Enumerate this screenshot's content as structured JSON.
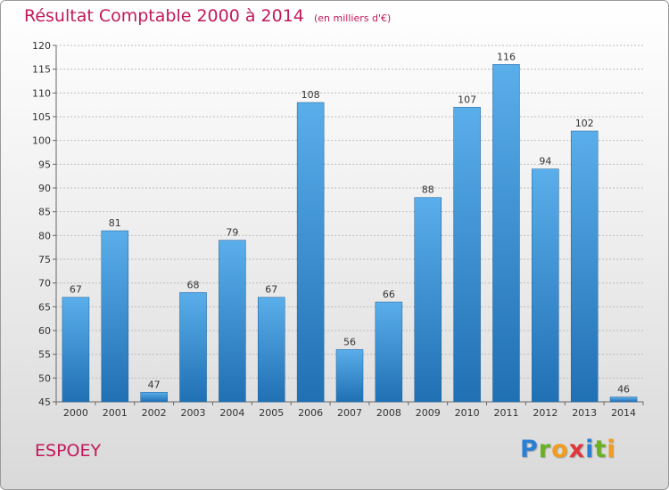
{
  "title": "Résultat Comptable 2000 à 2014",
  "subtitle": "(en milliers d'€)",
  "commune": "ESPOEY",
  "logo": {
    "text": "Proxiti",
    "letters": [
      {
        "ch": "P",
        "color": "#2a7fd4"
      },
      {
        "ch": "r",
        "color": "#6ab023"
      },
      {
        "ch": "o",
        "color": "#f29b1d"
      },
      {
        "ch": "x",
        "color": "#e0353a"
      },
      {
        "ch": "i",
        "color": "#2a7fd4"
      },
      {
        "ch": "t",
        "color": "#6ab023"
      },
      {
        "ch": "i",
        "color": "#f29b1d"
      }
    ]
  },
  "colors": {
    "title": "#c2185b",
    "bar_top": "#5aaeea",
    "bar_bottom": "#2070b4",
    "grid": "#bdbdbd"
  },
  "chart_data": {
    "type": "bar",
    "title": "Résultat Comptable 2000 à 2014",
    "subtitle": "(en milliers d'€)",
    "xlabel": "",
    "ylabel": "",
    "categories": [
      "2000",
      "2001",
      "2002",
      "2003",
      "2004",
      "2005",
      "2006",
      "2007",
      "2008",
      "2009",
      "2010",
      "2011",
      "2012",
      "2013",
      "2014"
    ],
    "values": [
      67,
      81,
      47,
      68,
      79,
      67,
      108,
      56,
      66,
      88,
      107,
      116,
      94,
      102,
      46
    ],
    "ylim": [
      45,
      120
    ],
    "yticks": [
      45,
      50,
      55,
      60,
      65,
      70,
      75,
      80,
      85,
      90,
      95,
      100,
      105,
      110,
      115,
      120
    ],
    "grid": true,
    "legend": "none"
  }
}
